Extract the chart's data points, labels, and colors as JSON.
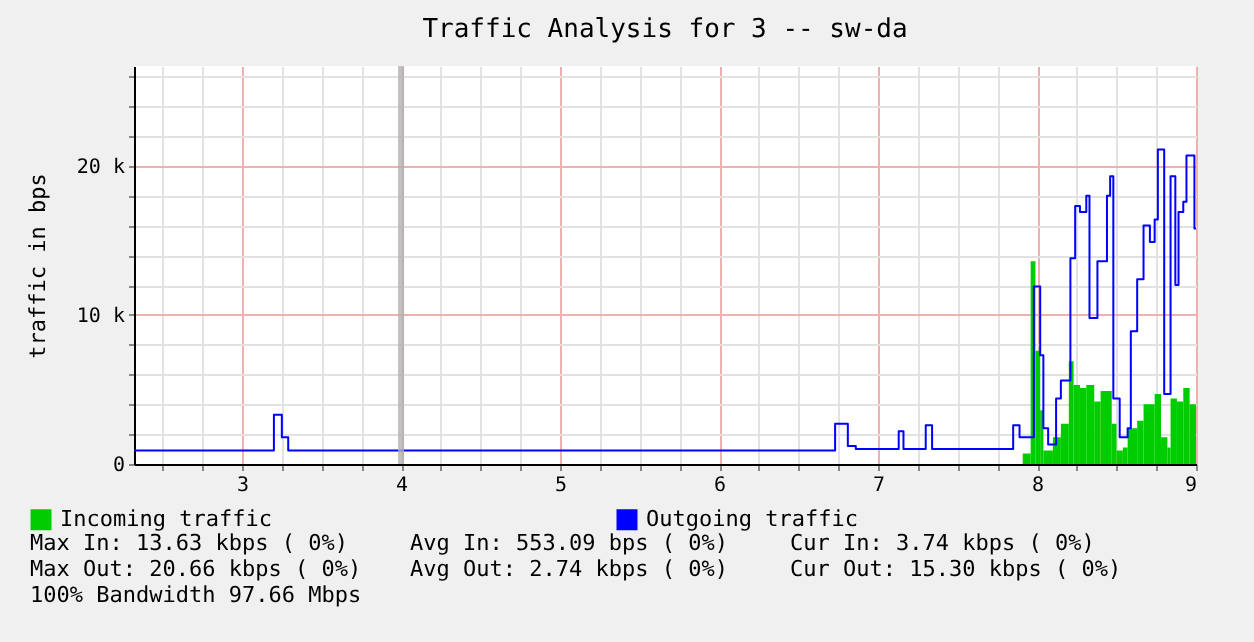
{
  "chart_data": {
    "type": "step",
    "title": "Traffic Analysis for 3 -- sw-da",
    "ylabel": "traffic in bps",
    "xlim": [
      2.32,
      9.0
    ],
    "xticks": [
      {
        "value": 2.5,
        "label": null
      },
      {
        "value": 2.75,
        "label": null
      },
      3,
      {
        "value": 3.25,
        "label": null
      },
      {
        "value": 3.5,
        "label": null
      },
      {
        "value": 3.75,
        "label": null
      },
      4,
      {
        "value": 4.25,
        "label": null
      },
      {
        "value": 4.5,
        "label": null
      },
      {
        "value": 4.75,
        "label": null
      },
      5,
      {
        "value": 5.25,
        "label": null
      },
      {
        "value": 5.5,
        "label": null
      },
      {
        "value": 5.75,
        "label": null
      },
      6,
      {
        "value": 6.25,
        "label": null
      },
      {
        "value": 6.5,
        "label": null
      },
      {
        "value": 6.75,
        "label": null
      },
      7,
      {
        "value": 7.25,
        "label": null
      },
      {
        "value": 7.5,
        "label": null
      },
      {
        "value": 7.75,
        "label": null
      },
      8,
      {
        "value": 8.25,
        "label": null
      },
      {
        "value": 8.5,
        "label": null
      },
      {
        "value": 8.75,
        "label": null
      },
      9
    ],
    "ylim": [
      0,
      26700
    ],
    "yticks": [
      0,
      {
        "value": 2000,
        "label": null
      },
      {
        "value": 4000,
        "label": null
      },
      {
        "value": 6000,
        "label": null
      },
      {
        "value": 8000,
        "label": null
      },
      {
        "value": 10000,
        "label": "10 k"
      },
      {
        "value": 12000,
        "label": null
      },
      {
        "value": 14000,
        "label": null
      },
      {
        "value": 16000,
        "label": null
      },
      {
        "value": 18000,
        "label": null
      },
      {
        "value": 20000,
        "label": "20 k"
      },
      {
        "value": 22000,
        "label": null
      },
      {
        "value": 24000,
        "label": null
      },
      {
        "value": 26000,
        "label": null
      }
    ],
    "grid": true,
    "legend": "bottom",
    "ref_lines": [
      {
        "axis": "x",
        "value": 4,
        "color": "#b0b0b0"
      }
    ],
    "series": [
      {
        "name": "Incoming traffic",
        "type": "area",
        "color": "#00cc00",
        "x": [
          7.91,
          7.96,
          7.99,
          8.02,
          8.04,
          8.1,
          8.15,
          8.2,
          8.23,
          8.27,
          8.31,
          8.36,
          8.4,
          8.47,
          8.5,
          8.54,
          8.57,
          8.63,
          8.67,
          8.74,
          8.78,
          8.82,
          8.84,
          8.88,
          8.92,
          8.96,
          9.0
        ],
        "values": [
          700,
          13600,
          7600,
          3600,
          900,
          1800,
          2700,
          6900,
          5300,
          5100,
          5300,
          4200,
          4900,
          2700,
          900,
          1100,
          2400,
          2900,
          4000,
          4700,
          1800,
          1100,
          4400,
          4200,
          5100,
          4000,
          4000
        ]
      },
      {
        "name": "Outgoing traffic",
        "color": "#0000ff",
        "x": [
          2.32,
          3.2,
          3.25,
          3.29,
          6.73,
          6.81,
          6.86,
          7.13,
          7.16,
          7.3,
          7.34,
          7.85,
          7.89,
          7.98,
          8.02,
          8.04,
          8.07,
          8.12,
          8.15,
          8.21,
          8.24,
          8.27,
          8.31,
          8.33,
          8.38,
          8.44,
          8.46,
          8.48,
          8.52,
          8.57,
          8.59,
          8.63,
          8.67,
          8.71,
          8.74,
          8.76,
          8.8,
          8.84,
          8.87,
          8.89,
          8.92,
          8.94,
          8.99,
          9.0
        ],
        "values": [
          900,
          3300,
          1800,
          900,
          2700,
          1200,
          1000,
          2200,
          1000,
          2600,
          1000,
          2600,
          1800,
          11900,
          7300,
          2400,
          1300,
          4400,
          5600,
          13800,
          17300,
          16900,
          18000,
          9800,
          13600,
          18000,
          19300,
          4400,
          1800,
          2400,
          8900,
          12400,
          16000,
          14900,
          16400,
          21100,
          4700,
          19300,
          12000,
          16900,
          17600,
          20700,
          15800,
          15800
        ]
      }
    ],
    "annotations": [
      "Max In:  13.63 kbps ( 0%)",
      "Avg In: 553.09  bps ( 0%)",
      "Cur In:   3.74 kbps ( 0%)",
      "Max Out: 20.66 kbps ( 0%)",
      "Avg Out:  2.74 kbps ( 0%)",
      "Cur Out: 15.30 kbps ( 0%)",
      "100% Bandwidth 97.66 Mbps"
    ]
  }
}
